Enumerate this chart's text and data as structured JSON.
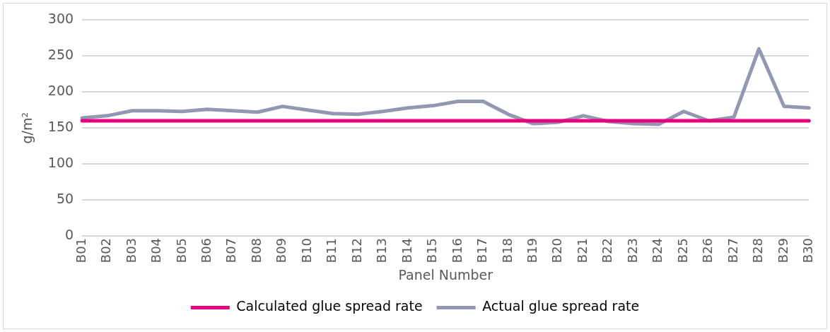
{
  "chart_data": {
    "type": "line",
    "xlabel": "Panel Number",
    "ylabel": "g/m²",
    "categories": [
      "B01",
      "B02",
      "B03",
      "B04",
      "B05",
      "B06",
      "B07",
      "B08",
      "B09",
      "B10",
      "B11",
      "B12",
      "B13",
      "B14",
      "B15",
      "B16",
      "B17",
      "B18",
      "B19",
      "B20",
      "B21",
      "B22",
      "B23",
      "B24",
      "B25",
      "B26",
      "B27",
      "B28",
      "B29",
      "B30"
    ],
    "series": [
      {
        "name": "Calculated glue spread rate",
        "color": "#e6007e",
        "values": [
          160,
          160,
          160,
          160,
          160,
          160,
          160,
          160,
          160,
          160,
          160,
          160,
          160,
          160,
          160,
          160,
          160,
          160,
          160,
          160,
          160,
          160,
          160,
          160,
          160,
          160,
          160,
          160,
          160,
          160
        ]
      },
      {
        "name": "Actual glue spread rate",
        "color": "#9497b1",
        "values": [
          164,
          167,
          174,
          174,
          173,
          176,
          174,
          172,
          180,
          175,
          170,
          169,
          173,
          178,
          181,
          187,
          187,
          169,
          156,
          158,
          167,
          159,
          156,
          155,
          173,
          160,
          165,
          260,
          180,
          178
        ]
      }
    ],
    "ylim": [
      0,
      300
    ],
    "yticks": [
      0,
      50,
      100,
      150,
      200,
      250,
      300
    ],
    "grid": "y",
    "legend": "bottom",
    "marker": "none",
    "line_style": "solid"
  }
}
